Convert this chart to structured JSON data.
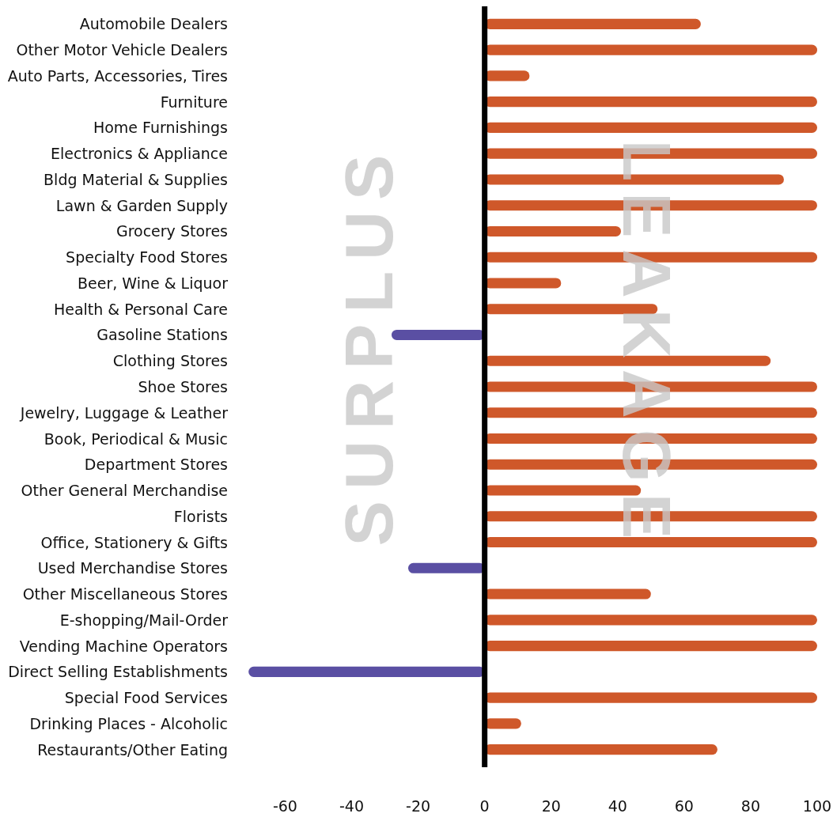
{
  "chart_data": {
    "type": "bar",
    "orientation": "horizontal",
    "categories": [
      "Automobile Dealers",
      "Other Motor Vehicle Dealers",
      "Auto Parts, Accessories, Tires",
      "Furniture",
      "Home Furnishings",
      "Electronics & Appliance",
      "Bldg Material & Supplies",
      "Lawn & Garden Supply",
      "Grocery Stores",
      "Specialty Food Stores",
      "Beer, Wine & Liquor",
      "Health & Personal Care",
      "Gasoline Stations",
      "Clothing Stores",
      "Shoe Stores",
      "Jewelry, Luggage & Leather",
      "Book, Periodical & Music",
      "Department Stores",
      "Other General Merchandise",
      "Florists",
      "Office, Stationery & Gifts",
      "Used Merchandise Stores",
      "Other Miscellaneous Stores",
      "E-shopping/Mail-Order",
      "Vending Machine Operators",
      "Direct Selling Establishments",
      "Special Food Services",
      "Drinking Places - Alcoholic",
      "Restaurants/Other Eating"
    ],
    "values": [
      65,
      100,
      13.5,
      100,
      100,
      100,
      90,
      100,
      41,
      100,
      23,
      52,
      -28,
      86,
      100,
      100,
      100,
      100,
      47,
      100,
      100,
      -23,
      50,
      100,
      100,
      -71,
      100,
      11,
      70
    ],
    "colors": [
      "#cf582a",
      "#cf582a",
      "#cf582a",
      "#cf582a",
      "#cf582a",
      "#cf582a",
      "#cf582a",
      "#cf582a",
      "#cf582a",
      "#cf582a",
      "#cf582a",
      "#cf582a",
      "#5a4fa3",
      "#cf582a",
      "#cf582a",
      "#cf582a",
      "#cf582a",
      "#cf582a",
      "#cf582a",
      "#cf582a",
      "#cf582a",
      "#5a4fa3",
      "#cf582a",
      "#cf582a",
      "#cf582a",
      "#5a4fa3",
      "#cf582a",
      "#cf582a",
      "#cf582a"
    ],
    "xlim": [
      -72,
      100
    ],
    "xticks": [
      -60,
      -40,
      -20,
      0,
      20,
      40,
      60,
      80,
      100
    ],
    "annotations": [
      "SURPLUS",
      "LEAKAGE"
    ]
  }
}
